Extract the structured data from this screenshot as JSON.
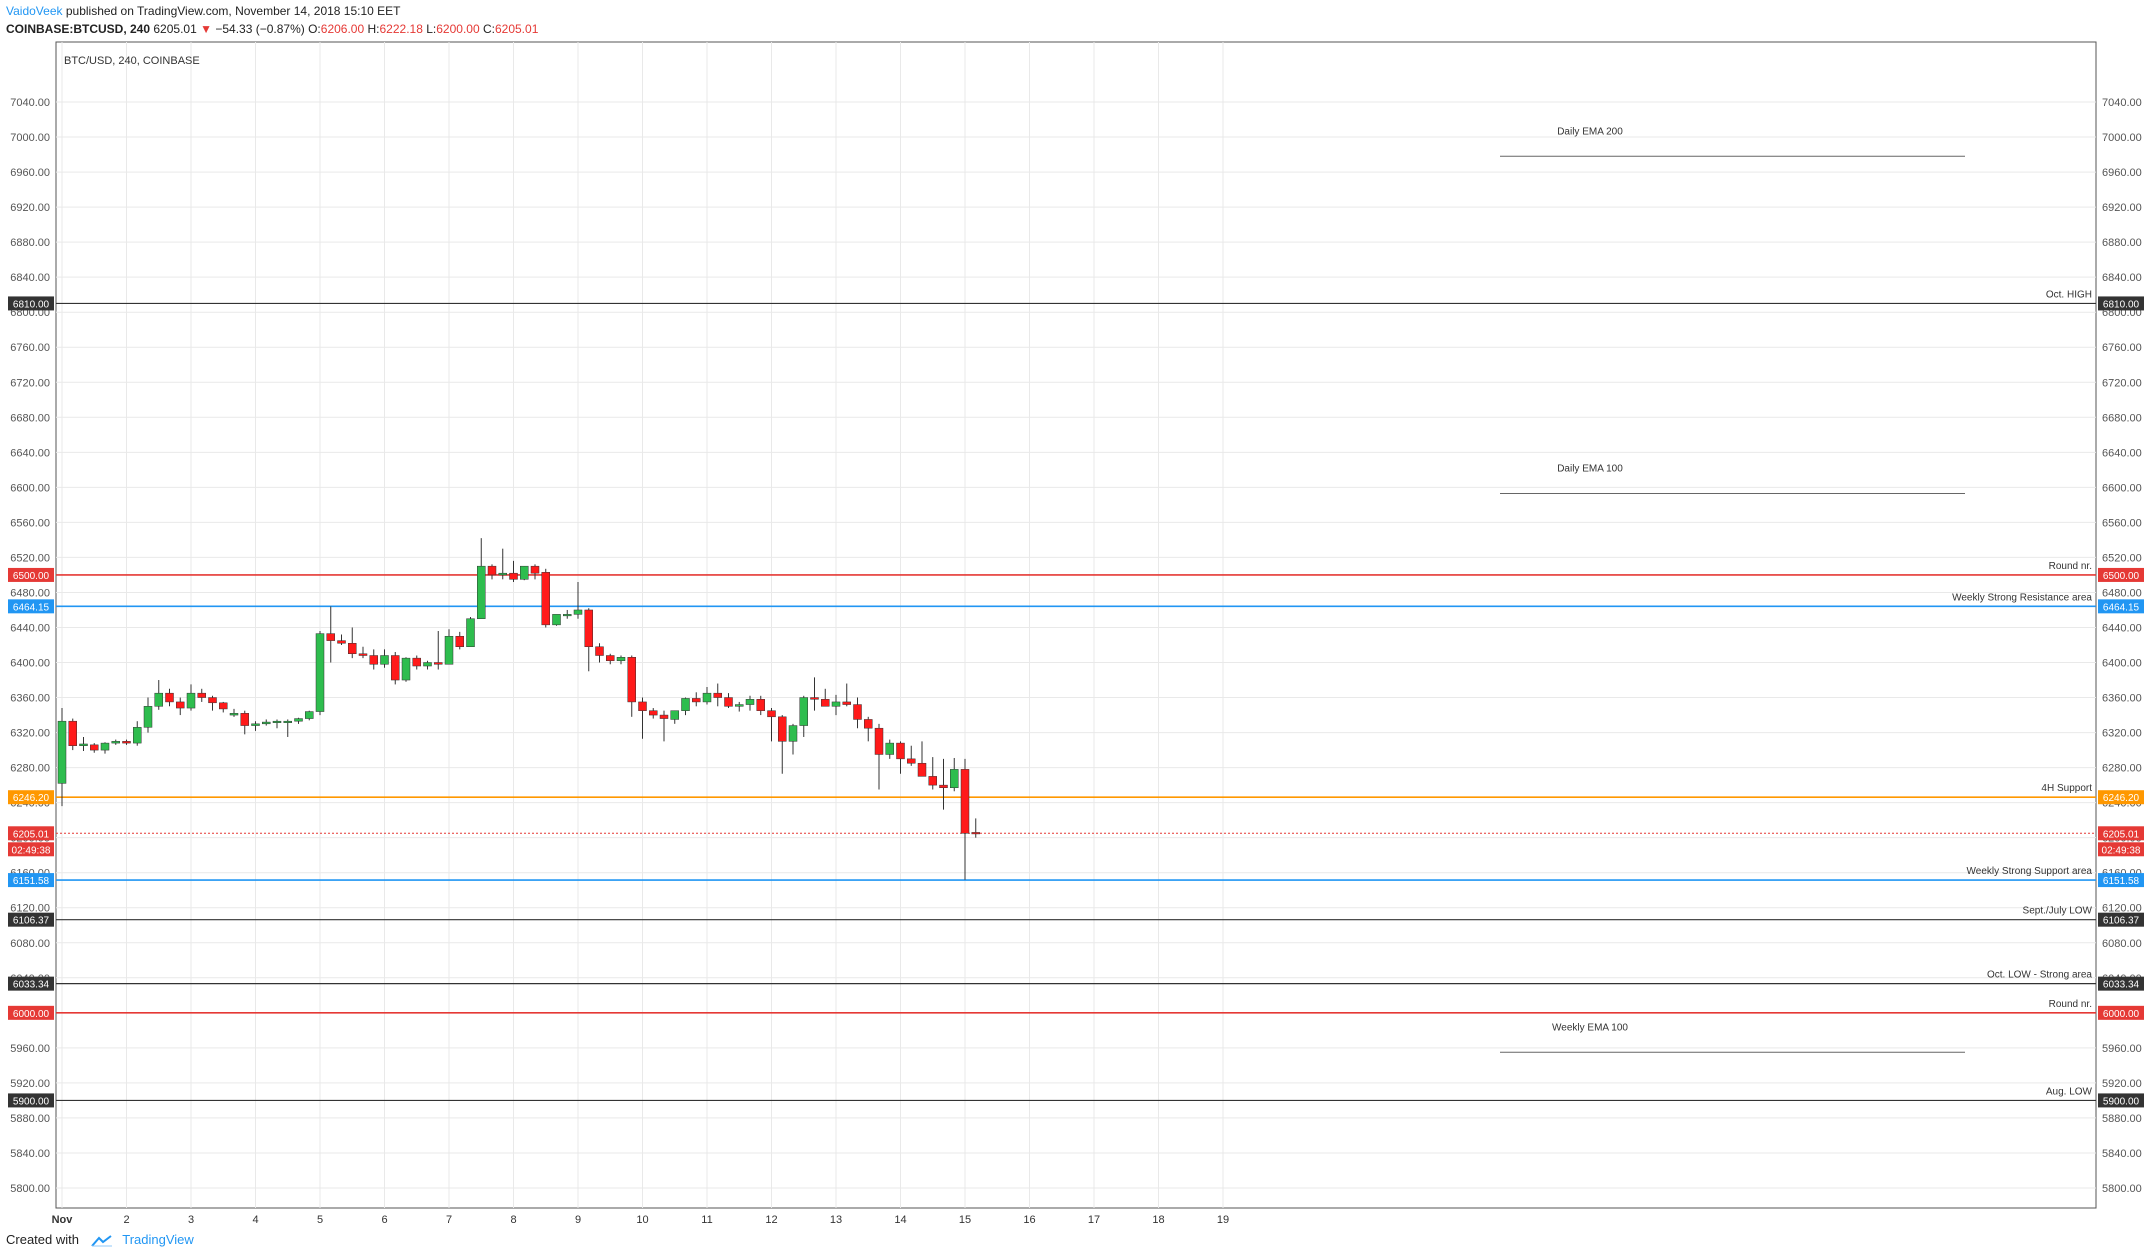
{
  "header": {
    "author": "VaidoVeek",
    "published": "published on TradingView.com, November 14, 2018 15:10 EET",
    "symbol": "COINBASE:BTCUSD, 240",
    "last": "6205.01",
    "change_arrow": "▼",
    "change": "−54.33 (−0.87%)",
    "o_label": "O:",
    "o_value": "6206.00",
    "h_label": "H:",
    "h_value": "6222.18",
    "l_label": "L:",
    "l_value": "6200.00",
    "c_label": "C:",
    "c_value": "6205.01"
  },
  "footer": {
    "created_with": "Created with",
    "brand": "TradingView"
  },
  "colors": {
    "up": "#2ebd4e",
    "down": "#ff1a1a",
    "grid": "#e9e9e9",
    "red_level": "#e53935",
    "blue_level": "#2196f3",
    "orange_level": "#ff9800",
    "dark_level": "#333333"
  },
  "chart_data": {
    "type": "candlestick",
    "title": "BTC/USD, 240, COINBASE",
    "ylim": [
      5780,
      7060
    ],
    "y_ticks": [
      5800,
      5840,
      5880,
      5920,
      5960,
      6000,
      6040,
      6080,
      6120,
      6160,
      6200,
      6240,
      6280,
      6320,
      6360,
      6400,
      6440,
      6480,
      6520,
      6560,
      6600,
      6640,
      6680,
      6720,
      6760,
      6800,
      6840,
      6880,
      6920,
      6960,
      7000,
      7040
    ],
    "x_labels": [
      "Nov",
      "2",
      "3",
      "4",
      "5",
      "6",
      "7",
      "8",
      "9",
      "10",
      "11",
      "12",
      "13",
      "14",
      "15",
      "16",
      "17",
      "18",
      "19"
    ],
    "x_label_bars": [
      0,
      6,
      12,
      18,
      24,
      30,
      36,
      42,
      48,
      54,
      60,
      66,
      72,
      78,
      84,
      90,
      96,
      102,
      108
    ],
    "candles": [
      [
        6262,
        6348,
        6236,
        6333
      ],
      [
        6333,
        6336,
        6300,
        6305
      ],
      [
        6305,
        6315,
        6299,
        6307
      ],
      [
        6306,
        6308,
        6297,
        6300
      ],
      [
        6300,
        6309,
        6296,
        6308
      ],
      [
        6308,
        6312,
        6306,
        6310
      ],
      [
        6310,
        6312,
        6306,
        6308
      ],
      [
        6308,
        6333,
        6305,
        6326
      ],
      [
        6326,
        6360,
        6320,
        6350
      ],
      [
        6350,
        6380,
        6346,
        6365
      ],
      [
        6365,
        6370,
        6350,
        6355
      ],
      [
        6355,
        6360,
        6340,
        6348
      ],
      [
        6348,
        6375,
        6345,
        6365
      ],
      [
        6365,
        6370,
        6355,
        6360
      ],
      [
        6360,
        6362,
        6345,
        6354
      ],
      [
        6354,
        6355,
        6343,
        6347
      ],
      [
        6340,
        6347,
        6338,
        6342
      ],
      [
        6342,
        6345,
        6318,
        6328
      ],
      [
        6328,
        6333,
        6322,
        6330
      ],
      [
        6330,
        6335,
        6328,
        6332
      ],
      [
        6332,
        6335,
        6325,
        6333
      ],
      [
        6332,
        6335,
        6315,
        6333
      ],
      [
        6333,
        6337,
        6330,
        6336
      ],
      [
        6336,
        6345,
        6334,
        6344
      ],
      [
        6344,
        6436,
        6340,
        6433
      ],
      [
        6433,
        6464,
        6400,
        6425
      ],
      [
        6425,
        6432,
        6420,
        6422
      ],
      [
        6422,
        6440,
        6405,
        6410
      ],
      [
        6410,
        6418,
        6405,
        6408
      ],
      [
        6408,
        6415,
        6392,
        6398
      ],
      [
        6398,
        6415,
        6394,
        6408
      ],
      [
        6408,
        6412,
        6375,
        6380
      ],
      [
        6380,
        6406,
        6378,
        6405
      ],
      [
        6405,
        6408,
        6392,
        6396
      ],
      [
        6396,
        6402,
        6392,
        6400
      ],
      [
        6400,
        6436,
        6392,
        6398
      ],
      [
        6398,
        6438,
        6398,
        6430
      ],
      [
        6430,
        6435,
        6415,
        6418
      ],
      [
        6418,
        6452,
        6418,
        6450
      ],
      [
        6450,
        6542,
        6450,
        6510
      ],
      [
        6510,
        6512,
        6495,
        6500
      ],
      [
        6500,
        6530,
        6495,
        6502
      ],
      [
        6502,
        6516,
        6492,
        6495
      ],
      [
        6495,
        6510,
        6494,
        6510
      ],
      [
        6510,
        6512,
        6495,
        6502
      ],
      [
        6503,
        6507,
        6440,
        6443
      ],
      [
        6443,
        6454,
        6442,
        6455
      ],
      [
        6455,
        6460,
        6450,
        6455
      ],
      [
        6455,
        6492,
        6450,
        6460
      ],
      [
        6460,
        6462,
        6390,
        6418
      ],
      [
        6418,
        6422,
        6400,
        6408
      ],
      [
        6408,
        6410,
        6398,
        6402
      ],
      [
        6402,
        6408,
        6398,
        6406
      ],
      [
        6406,
        6408,
        6338,
        6355
      ],
      [
        6355,
        6360,
        6313,
        6345
      ],
      [
        6345,
        6348,
        6336,
        6340
      ],
      [
        6340,
        6345,
        6310,
        6336
      ],
      [
        6335,
        6345,
        6330,
        6345
      ],
      [
        6345,
        6360,
        6340,
        6359
      ],
      [
        6359,
        6366,
        6350,
        6355
      ],
      [
        6355,
        6372,
        6352,
        6365
      ],
      [
        6365,
        6376,
        6350,
        6360
      ],
      [
        6360,
        6365,
        6348,
        6350
      ],
      [
        6350,
        6355,
        6344,
        6352
      ],
      [
        6352,
        6362,
        6345,
        6358
      ],
      [
        6358,
        6362,
        6340,
        6345
      ],
      [
        6345,
        6348,
        6310,
        6338
      ],
      [
        6338,
        6340,
        6273,
        6310
      ],
      [
        6310,
        6330,
        6295,
        6328
      ],
      [
        6328,
        6362,
        6315,
        6360
      ],
      [
        6360,
        6383,
        6345,
        6358
      ],
      [
        6358,
        6370,
        6350,
        6350
      ],
      [
        6350,
        6363,
        6340,
        6355
      ],
      [
        6355,
        6376,
        6350,
        6352
      ],
      [
        6352,
        6360,
        6325,
        6335
      ],
      [
        6335,
        6338,
        6310,
        6325
      ],
      [
        6325,
        6330,
        6255,
        6295
      ],
      [
        6295,
        6312,
        6290,
        6308
      ],
      [
        6308,
        6310,
        6273,
        6290
      ],
      [
        6290,
        6305,
        6282,
        6285
      ],
      [
        6285,
        6310,
        6278,
        6270
      ],
      [
        6270,
        6292,
        6255,
        6260
      ],
      [
        6260,
        6290,
        6232,
        6257
      ],
      [
        6257,
        6291,
        6253,
        6278
      ],
      [
        6278,
        6290,
        6152,
        6205
      ],
      [
        6206,
        6222,
        6200,
        6205
      ]
    ],
    "levels": [
      {
        "price": 6810.0,
        "label": "Oct. HIGH",
        "tag": "6810.00",
        "color": "#333333"
      },
      {
        "price": 6500.0,
        "label": "Round nr.",
        "tag": "6500.00",
        "color": "#e53935"
      },
      {
        "price": 6464.15,
        "label": "Weekly Strong Resistance area",
        "tag": "6464.15",
        "color": "#2196f3"
      },
      {
        "price": 6246.2,
        "label": "4H Support",
        "tag": "6246.20",
        "color": "#ff9800"
      },
      {
        "price": 6151.58,
        "label": "Weekly Strong Support area",
        "tag": "6151.58",
        "color": "#2196f3"
      },
      {
        "price": 6106.37,
        "label": "Sept./July LOW",
        "tag": "6106.37",
        "color": "#333333"
      },
      {
        "price": 6033.34,
        "label": "Oct. LOW - Strong area",
        "tag": "6033.34",
        "color": "#333333"
      },
      {
        "price": 6000.0,
        "label": "Round nr.",
        "tag": "6000.00",
        "color": "#e53935"
      },
      {
        "price": 5900.0,
        "label": "Aug. LOW",
        "tag": "5900.00",
        "color": "#333333"
      }
    ],
    "emas": [
      {
        "price": 6978,
        "label": "Daily EMA 200"
      },
      {
        "price": 6593,
        "label": "Daily EMA 100"
      },
      {
        "price": 5955,
        "label": "Weekly EMA 100"
      }
    ],
    "current_price": {
      "value": 6205.01,
      "tag": "6205.01",
      "countdown": "02:49:38"
    }
  }
}
